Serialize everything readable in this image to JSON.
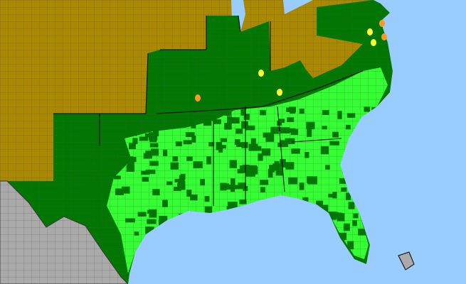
{
  "map": {
    "colors": {
      "water": "#99ccff",
      "absent_state": "#aa8800",
      "present_state": "#007700",
      "present_county": "#33ff33",
      "other_country": "#aaaaaa",
      "county_border": "#555555",
      "state_border": "#000000",
      "marker_yellow": "#ffff33",
      "marker_orange": "#ff9922"
    },
    "legend_categories": [
      "present_county",
      "present_state",
      "absent_state",
      "other_country"
    ]
  }
}
